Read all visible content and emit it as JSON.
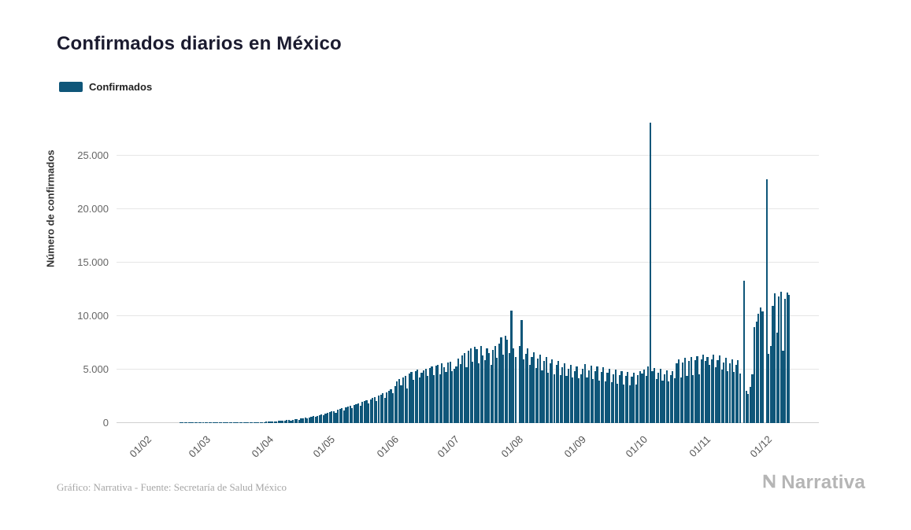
{
  "header": {
    "title": "Confirmados diarios en México"
  },
  "legend": {
    "label": "Confirmados",
    "color": "#0f5679"
  },
  "y_axis": {
    "label": "Número de confirmados",
    "ticks": [
      "0",
      "5.000",
      "10.000",
      "15.000",
      "20.000",
      "25.000"
    ],
    "tick_values": [
      0,
      5000,
      10000,
      15000,
      20000,
      25000
    ]
  },
  "x_axis": {
    "ticks": [
      "01/02",
      "01/03",
      "01/04",
      "01/05",
      "01/06",
      "01/07",
      "01/08",
      "01/09",
      "01/10",
      "01/11",
      "01/12"
    ]
  },
  "footer": {
    "caption": "Gráfico: Narrativa - Fuente: Secretaría de Salud México",
    "brand": "Narrativa"
  },
  "colors": {
    "bar": "#0f5679",
    "grid": "#e6e6e6",
    "text_muted": "#666666"
  },
  "chart_data": {
    "type": "bar",
    "title": "Confirmados diarios en México",
    "xlabel": "",
    "ylabel": "Número de confirmados",
    "ylim": [
      0,
      25000
    ],
    "grid": true,
    "legend_position": "top-left",
    "start_date": "2020-02-01",
    "frequency": "daily",
    "x_tick_labels": [
      "01/02",
      "01/03",
      "01/04",
      "01/05",
      "01/06",
      "01/07",
      "01/08",
      "01/09",
      "01/10",
      "01/11",
      "01/12"
    ],
    "tick_day_indices": [
      0,
      29,
      60,
      90,
      121,
      151,
      182,
      213,
      243,
      274,
      304
    ],
    "series": [
      {
        "name": "Confirmados",
        "values": [
          0,
          0,
          0,
          0,
          0,
          0,
          0,
          0,
          0,
          0,
          0,
          0,
          0,
          0,
          0,
          0,
          0,
          1,
          1,
          2,
          1,
          2,
          3,
          2,
          4,
          3,
          5,
          4,
          6,
          5,
          6,
          7,
          6,
          9,
          11,
          13,
          10,
          15,
          18,
          21,
          17,
          24,
          28,
          32,
          26,
          36,
          41,
          46,
          38,
          52,
          58,
          65,
          54,
          72,
          80,
          88,
          73,
          96,
          105,
          115,
          125,
          140,
          155,
          135,
          175,
          195,
          215,
          185,
          240,
          265,
          290,
          250,
          320,
          350,
          385,
          330,
          420,
          460,
          500,
          430,
          545,
          590,
          640,
          555,
          695,
          750,
          810,
          700,
          870,
          935,
          1000,
          1070,
          1140,
          980,
          1220,
          1300,
          1380,
          1180,
          1460,
          1540,
          1620,
          1390,
          1700,
          1780,
          1860,
          1600,
          1950,
          2040,
          2130,
          1830,
          2230,
          2330,
          2430,
          2090,
          2540,
          2650,
          2760,
          2370,
          2890,
          3010,
          3150,
          2770,
          3430,
          3910,
          4100,
          3550,
          4250,
          4440,
          3230,
          4620,
          4790,
          4050,
          4880,
          5010,
          4280,
          4730,
          4930,
          5090,
          4380,
          5180,
          5280,
          4490,
          5380,
          5470,
          4570,
          5590,
          5220,
          4790,
          5680,
          5760,
          4890,
          5040,
          5310,
          6020,
          5480,
          6290,
          6580,
          5190,
          6780,
          6990,
          5750,
          7110,
          6890,
          5620,
          7180,
          6330,
          5890,
          6980,
          6540,
          5410,
          6830,
          7240,
          6080,
          7460,
          7980,
          6390,
          8160,
          7820,
          6570,
          10490,
          6960,
          6180,
          0,
          7210,
          9660,
          5980,
          6490,
          6970,
          5460,
          6210,
          6590,
          5120,
          6010,
          6380,
          4940,
          5810,
          6190,
          4710,
          5620,
          5990,
          4580,
          5430,
          5790,
          4470,
          5240,
          5590,
          4380,
          5050,
          5410,
          4290,
          4870,
          5280,
          4210,
          4580,
          5060,
          5510,
          4230,
          4960,
          5400,
          4100,
          4870,
          5290,
          3990,
          4780,
          5190,
          3880,
          4690,
          5080,
          3790,
          4590,
          4980,
          3700,
          4500,
          4890,
          3610,
          4410,
          4790,
          3530,
          4320,
          4700,
          3620,
          4480,
          4860,
          4610,
          4980,
          4380,
          5290,
          28115,
          4820,
          5180,
          4120,
          4690,
          5070,
          3980,
          4580,
          4960,
          3890,
          4470,
          4850,
          4190,
          5580,
          5970,
          4290,
          5680,
          6070,
          4380,
          5780,
          6170,
          4470,
          5880,
          6270,
          4560,
          5980,
          6380,
          5840,
          6190,
          5420,
          5990,
          6420,
          5210,
          5880,
          6310,
          5030,
          5690,
          6120,
          4870,
          5560,
          5980,
          4760,
          5440,
          5860,
          4650,
          0,
          13345,
          3010,
          2690,
          3380,
          4550,
          8980,
          9520,
          10190,
          10790,
          10450,
          0,
          22806,
          6480,
          7190,
          10980,
          12110,
          8450,
          11860,
          12290,
          6770,
          11590,
          12190,
          11950
        ]
      }
    ]
  }
}
